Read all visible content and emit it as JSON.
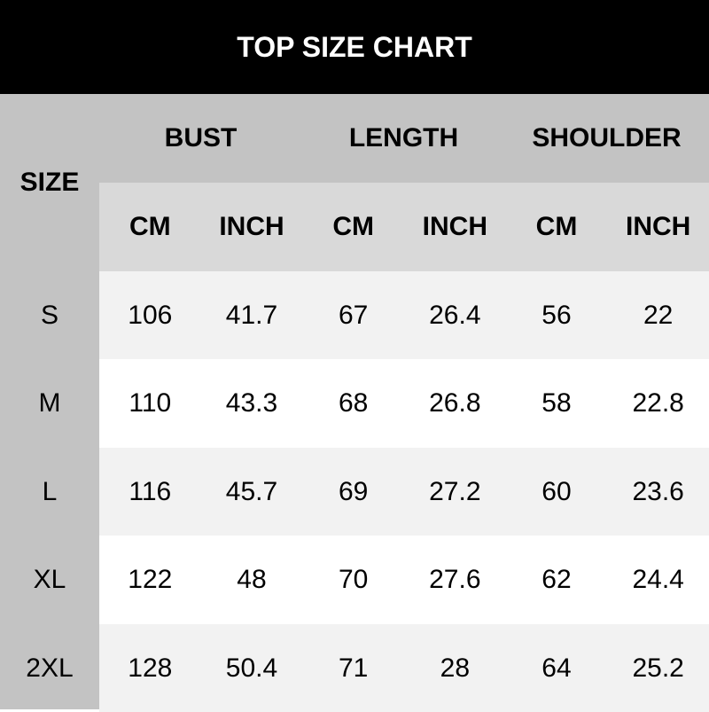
{
  "title": "TOP SIZE CHART",
  "size_header": "SIZE",
  "groups": [
    "BUST",
    "LENGTH",
    "SHOULDER"
  ],
  "units": [
    "CM",
    "INCH",
    "CM",
    "INCH",
    "CM",
    "INCH"
  ],
  "rows": [
    {
      "size": "S",
      "values": [
        "106",
        "41.7",
        "67",
        "26.4",
        "56",
        "22"
      ]
    },
    {
      "size": "M",
      "values": [
        "110",
        "43.3",
        "68",
        "26.8",
        "58",
        "22.8"
      ]
    },
    {
      "size": "L",
      "values": [
        "116",
        "45.7",
        "69",
        "27.2",
        "60",
        "23.6"
      ]
    },
    {
      "size": "XL",
      "values": [
        "122",
        "48",
        "70",
        "27.6",
        "62",
        "24.4"
      ]
    },
    {
      "size": "2XL",
      "values": [
        "128",
        "50.4",
        "71",
        "28",
        "64",
        "25.2"
      ]
    }
  ],
  "colors": {
    "header_bg": "#000000",
    "size_col_bg": "#c3c3c3",
    "subheader_bg": "#d9d9d9",
    "row_alt_bg": "#f2f2f2"
  }
}
